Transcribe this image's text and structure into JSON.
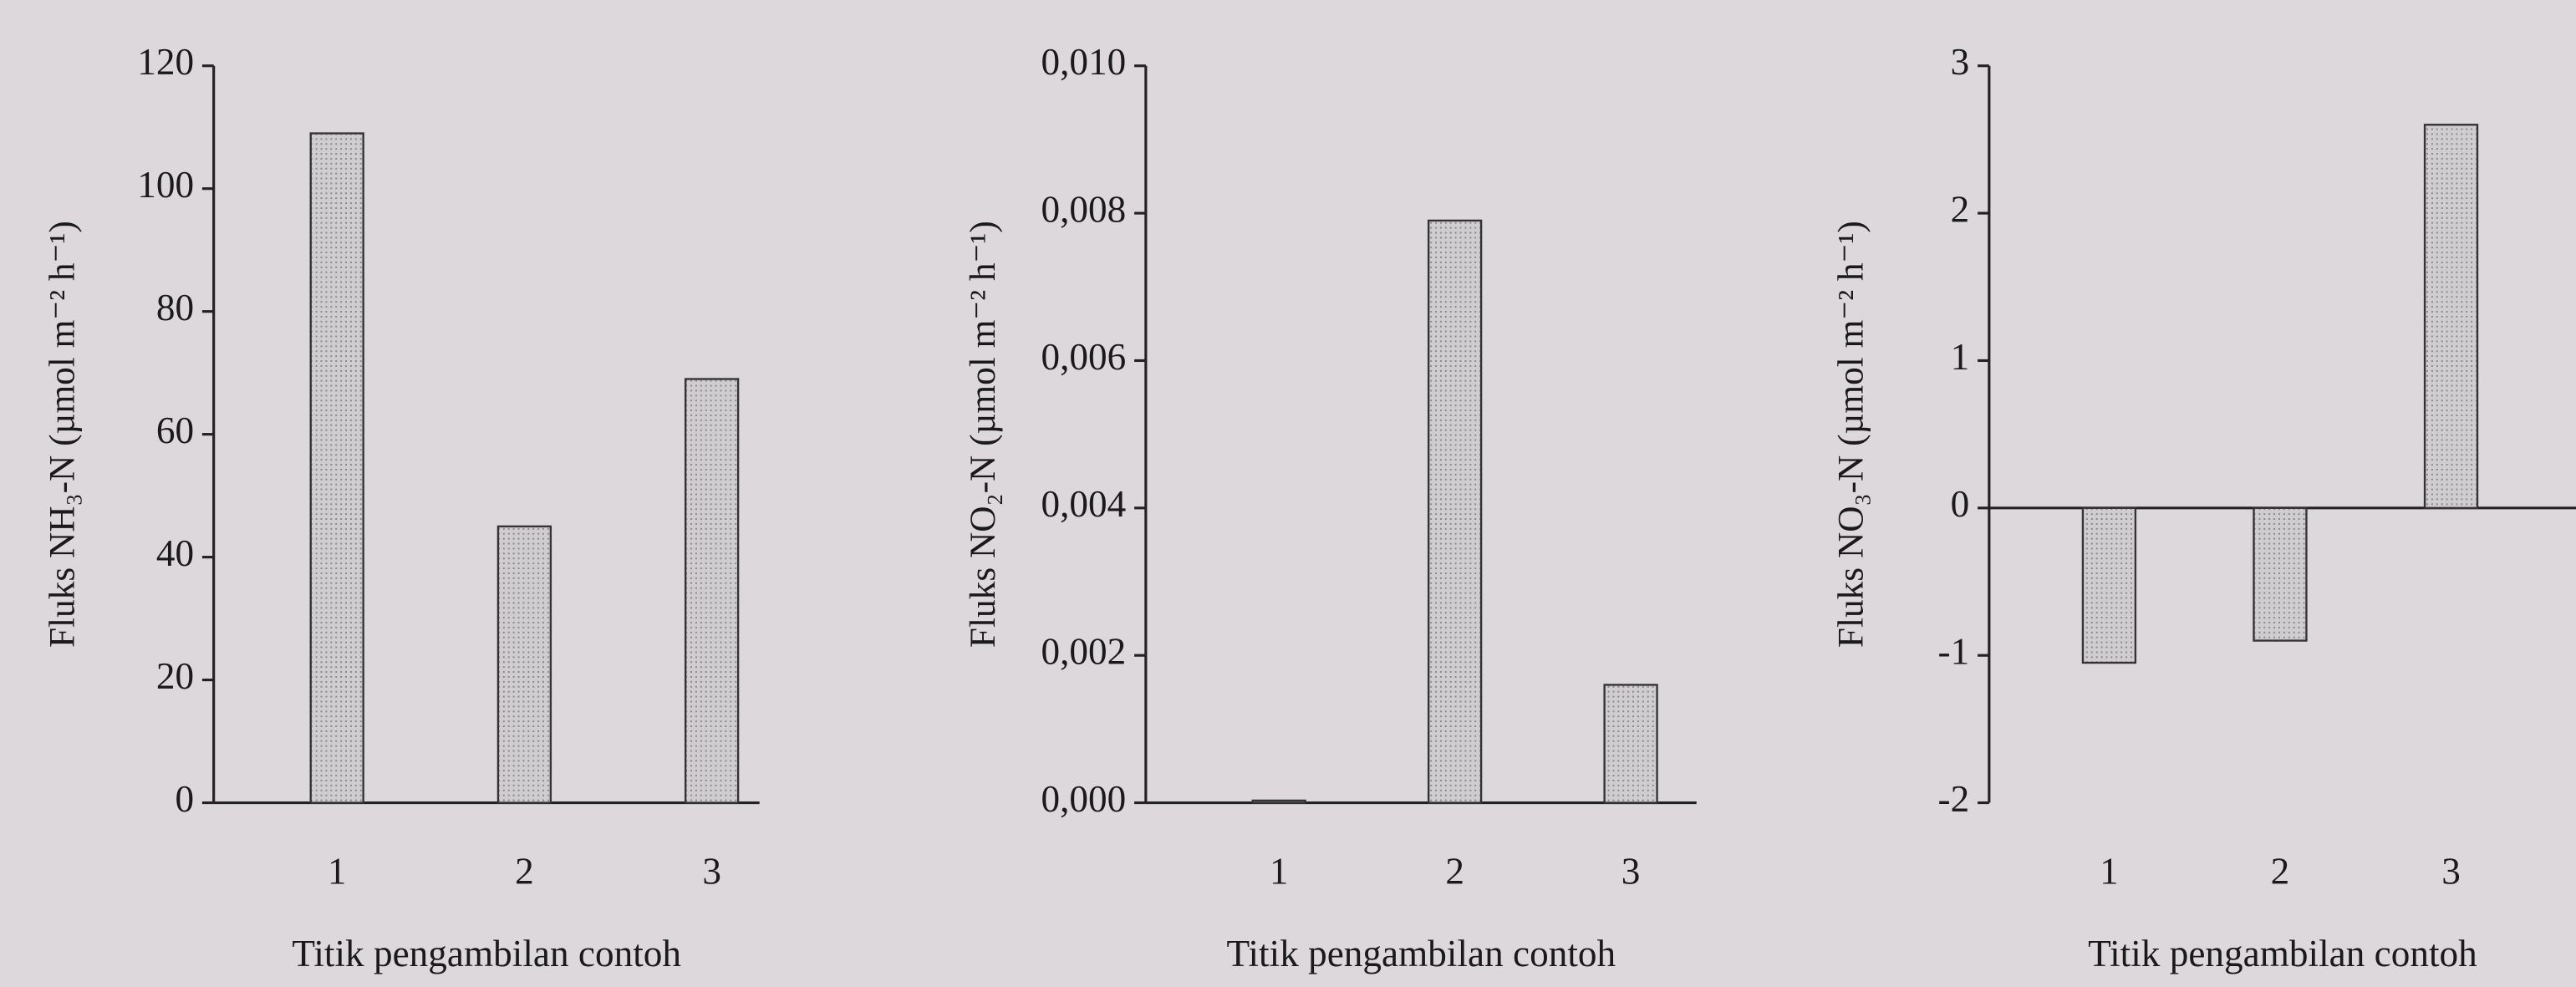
{
  "chart_data": [
    {
      "type": "bar",
      "categories": [
        "1",
        "2",
        "3"
      ],
      "values": [
        109,
        45,
        69
      ],
      "color": "#c6c4c6",
      "ylim": [
        0,
        120
      ],
      "yticks": [
        0,
        20,
        40,
        60,
        80,
        100,
        120
      ],
      "xlabel": "Titik pengambilan contoh",
      "ylabel": "Fluks NH₃-N (µmol m⁻² h⁻¹)"
    },
    {
      "type": "bar",
      "categories": [
        "1",
        "2",
        "3"
      ],
      "values": [
        3e-05,
        0.0079,
        0.0016
      ],
      "color": "#c6c4c6",
      "ylim": [
        0,
        0.01
      ],
      "yticks": [
        {
          "value": 0,
          "label": "0,000"
        },
        {
          "value": 0.002,
          "label": "0,002"
        },
        {
          "value": 0.004,
          "label": "0,004"
        },
        {
          "value": 0.006,
          "label": "0,006"
        },
        {
          "value": 0.008,
          "label": "0,008"
        },
        {
          "value": 0.01,
          "label": "0,010"
        }
      ],
      "xlabel": "Titik pengambilan contoh",
      "ylabel": "Fluks NO₂-N (µmol m⁻² h⁻¹)"
    },
    {
      "type": "bar",
      "categories": [
        "1",
        "2",
        "3"
      ],
      "values": [
        -1.05,
        -0.9,
        2.6
      ],
      "color": "#c6c4c6",
      "ylim": [
        -2,
        3
      ],
      "yticks": [
        -2,
        -1,
        0,
        1,
        2,
        3
      ],
      "xlabel": "Titik pengambilan contoh",
      "ylabel": "Fluks NO₃-N (µmol m⁻² h⁻¹)"
    }
  ]
}
